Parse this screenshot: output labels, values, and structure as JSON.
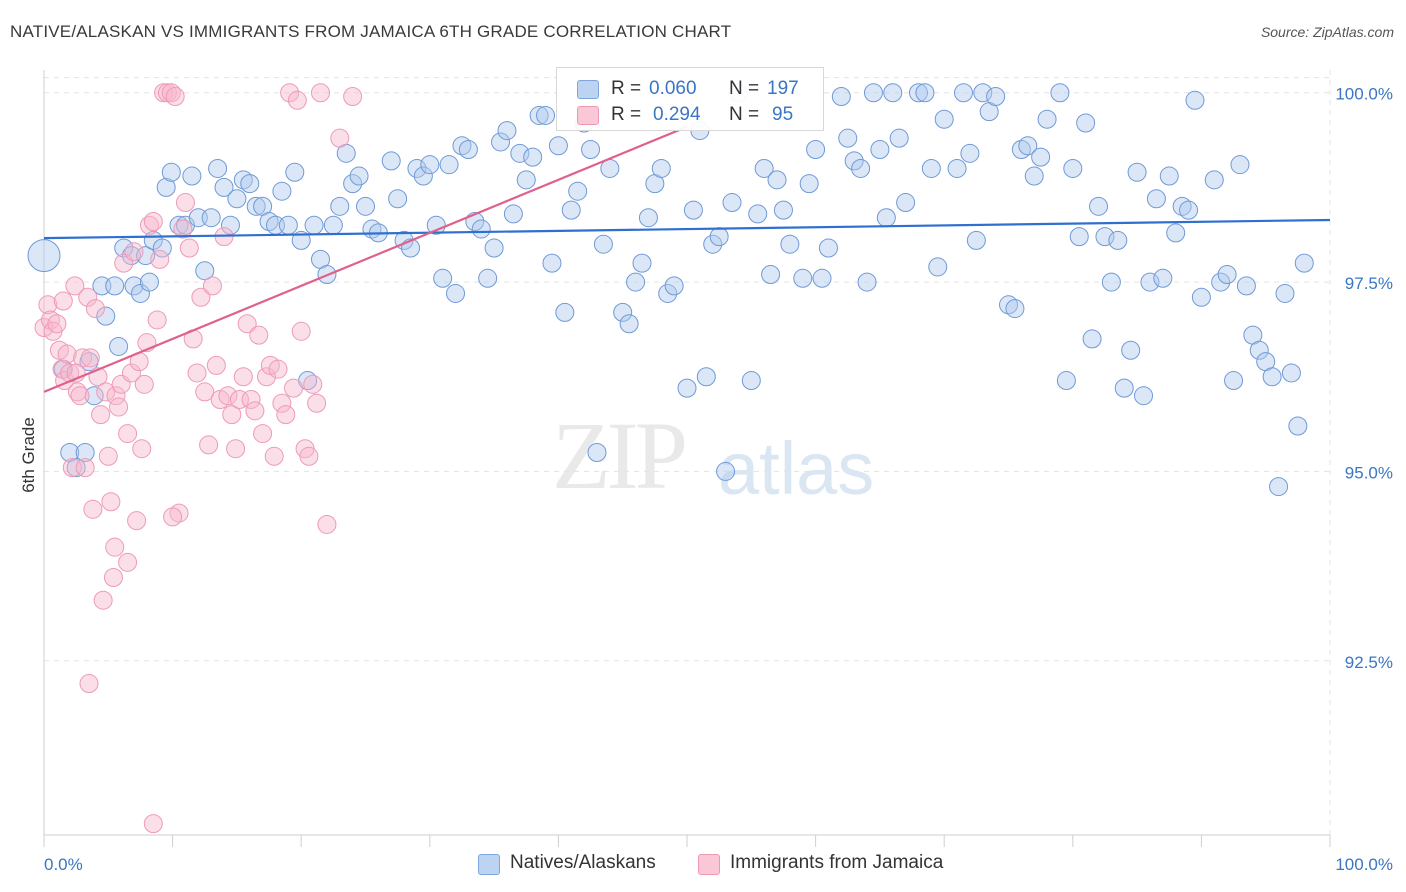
{
  "title": "NATIVE/ALASKAN VS IMMIGRANTS FROM JAMAICA 6TH GRADE CORRELATION CHART",
  "source": "Source: ZipAtlas.com",
  "watermark": {
    "zip": "ZIP",
    "atlas": "atlas"
  },
  "legend": {
    "r_label": "R =",
    "n_label": "N =",
    "series1": {
      "r": "0.060",
      "n": "197"
    },
    "series2": {
      "r": "0.294",
      "n": "95"
    }
  },
  "bottom_legend": {
    "series1": "Natives/Alaskans",
    "series2": "Immigrants from Jamaica"
  },
  "colors": {
    "blue": "#3a76c4",
    "pink": "#e86f98",
    "blue_fill": "#bcd3f2",
    "pink_fill": "#f9c7d6"
  },
  "chart_data": {
    "type": "scatter",
    "title": "NATIVE/ALASKAN VS IMMIGRANTS FROM JAMAICA 6TH GRADE CORRELATION CHART",
    "xlabel": "",
    "ylabel": "6th Grade",
    "xlim": [
      0,
      100
    ],
    "ylim": [
      90.2,
      100.3
    ],
    "x_tick_labels": [
      "0.0%",
      "100.0%"
    ],
    "y_ticks": [
      92.5,
      95.0,
      97.5,
      100.0
    ],
    "y_tick_labels": [
      "92.5%",
      "95.0%",
      "97.5%",
      "100.0%"
    ],
    "grid": true,
    "legend_position": "top-center",
    "series": [
      {
        "name": "Natives/Alaskans",
        "color": "#3a76c4",
        "trend": [
          [
            0,
            98.08
          ],
          [
            100,
            98.32
          ]
        ],
        "points": [
          [
            0,
            97.85
          ],
          [
            1.5,
            96.35
          ],
          [
            2,
            95.25
          ],
          [
            2.5,
            95.05
          ],
          [
            3.2,
            95.25
          ],
          [
            3.5,
            96.45
          ],
          [
            3.9,
            96.0
          ],
          [
            4.5,
            97.45
          ],
          [
            4.8,
            97.05
          ],
          [
            5.5,
            97.45
          ],
          [
            5.8,
            96.65
          ],
          [
            6.2,
            97.95
          ],
          [
            6.8,
            97.85
          ],
          [
            7,
            97.45
          ],
          [
            7.5,
            97.35
          ],
          [
            7.9,
            97.85
          ],
          [
            8.2,
            97.5
          ],
          [
            8.5,
            98.05
          ],
          [
            9.2,
            97.95
          ],
          [
            9.5,
            98.75
          ],
          [
            9.9,
            98.95
          ],
          [
            10.5,
            98.25
          ],
          [
            11,
            98.25
          ],
          [
            11.5,
            98.9
          ],
          [
            12,
            98.35
          ],
          [
            12.5,
            97.65
          ],
          [
            13,
            98.35
          ],
          [
            13.5,
            99.0
          ],
          [
            14,
            98.75
          ],
          [
            14.5,
            98.25
          ],
          [
            15,
            98.6
          ],
          [
            15.5,
            98.85
          ],
          [
            16,
            98.8
          ],
          [
            16.5,
            98.5
          ],
          [
            17,
            98.5
          ],
          [
            17.5,
            98.3
          ],
          [
            18,
            98.25
          ],
          [
            18.5,
            98.7
          ],
          [
            19,
            98.25
          ],
          [
            19.5,
            98.95
          ],
          [
            20,
            98.05
          ],
          [
            20.5,
            96.2
          ],
          [
            21,
            98.25
          ],
          [
            21.5,
            97.8
          ],
          [
            22,
            97.6
          ],
          [
            22.5,
            98.25
          ],
          [
            23,
            98.5
          ],
          [
            23.5,
            99.2
          ],
          [
            24,
            98.8
          ],
          [
            24.5,
            98.9
          ],
          [
            25,
            98.5
          ],
          [
            25.5,
            98.2
          ],
          [
            26,
            98.15
          ],
          [
            27,
            99.1
          ],
          [
            27.5,
            98.6
          ],
          [
            28,
            98.05
          ],
          [
            28.5,
            97.95
          ],
          [
            29,
            99.0
          ],
          [
            29.5,
            98.9
          ],
          [
            30,
            99.05
          ],
          [
            30.5,
            98.25
          ],
          [
            31,
            97.55
          ],
          [
            31.5,
            99.05
          ],
          [
            32,
            97.35
          ],
          [
            32.5,
            99.3
          ],
          [
            33,
            99.25
          ],
          [
            33.5,
            98.3
          ],
          [
            34,
            98.2
          ],
          [
            34.5,
            97.55
          ],
          [
            35,
            97.95
          ],
          [
            35.5,
            99.35
          ],
          [
            36,
            99.5
          ],
          [
            36.5,
            98.4
          ],
          [
            37,
            99.2
          ],
          [
            37.5,
            98.85
          ],
          [
            38,
            99.15
          ],
          [
            38.5,
            99.7
          ],
          [
            39,
            99.7
          ],
          [
            39.5,
            97.75
          ],
          [
            40,
            99.3
          ],
          [
            40.5,
            97.1
          ],
          [
            41,
            98.45
          ],
          [
            41.5,
            98.7
          ],
          [
            42,
            99.6
          ],
          [
            42.5,
            99.25
          ],
          [
            43,
            95.25
          ],
          [
            43.5,
            98.0
          ],
          [
            44,
            99.0
          ],
          [
            45,
            97.1
          ],
          [
            45.5,
            96.95
          ],
          [
            46,
            97.5
          ],
          [
            46.5,
            97.75
          ],
          [
            47,
            98.35
          ],
          [
            47.5,
            98.8
          ],
          [
            48,
            99.0
          ],
          [
            48.5,
            97.35
          ],
          [
            49,
            97.45
          ],
          [
            50,
            96.1
          ],
          [
            50.5,
            98.45
          ],
          [
            51,
            99.5
          ],
          [
            51.5,
            96.25
          ],
          [
            52,
            98.0
          ],
          [
            52.5,
            98.1
          ],
          [
            53,
            95.0
          ],
          [
            53.5,
            98.55
          ],
          [
            54,
            100.0
          ],
          [
            55,
            96.2
          ],
          [
            55.5,
            98.4
          ],
          [
            56,
            99.0
          ],
          [
            56.5,
            97.6
          ],
          [
            57,
            98.85
          ],
          [
            57.5,
            98.45
          ],
          [
            58,
            98.0
          ],
          [
            59,
            97.55
          ],
          [
            59.5,
            98.8
          ],
          [
            60,
            99.25
          ],
          [
            60.5,
            97.55
          ],
          [
            61,
            97.95
          ],
          [
            62,
            99.95
          ],
          [
            62.5,
            99.4
          ],
          [
            63,
            99.1
          ],
          [
            63.5,
            99.0
          ],
          [
            64,
            97.5
          ],
          [
            64.5,
            100.0
          ],
          [
            65,
            99.25
          ],
          [
            65.5,
            98.35
          ],
          [
            66,
            100.0
          ],
          [
            66.5,
            99.4
          ],
          [
            67,
            98.55
          ],
          [
            68,
            100.0
          ],
          [
            68.5,
            100.0
          ],
          [
            69,
            99.0
          ],
          [
            69.5,
            97.7
          ],
          [
            70,
            99.65
          ],
          [
            71,
            99.0
          ],
          [
            71.5,
            100.0
          ],
          [
            72,
            99.2
          ],
          [
            72.5,
            98.05
          ],
          [
            73,
            100.0
          ],
          [
            73.5,
            99.75
          ],
          [
            74,
            99.95
          ],
          [
            75,
            97.2
          ],
          [
            75.5,
            97.15
          ],
          [
            76,
            99.25
          ],
          [
            76.5,
            99.3
          ],
          [
            77,
            98.9
          ],
          [
            77.5,
            99.15
          ],
          [
            78,
            99.65
          ],
          [
            79,
            100.0
          ],
          [
            79.5,
            96.2
          ],
          [
            80,
            99.0
          ],
          [
            80.5,
            98.1
          ],
          [
            81,
            99.6
          ],
          [
            81.5,
            96.75
          ],
          [
            82,
            98.5
          ],
          [
            82.5,
            98.1
          ],
          [
            83,
            97.5
          ],
          [
            83.5,
            98.05
          ],
          [
            84,
            96.1
          ],
          [
            84.5,
            96.6
          ],
          [
            85,
            98.95
          ],
          [
            85.5,
            96.0
          ],
          [
            86,
            97.5
          ],
          [
            86.5,
            98.6
          ],
          [
            87,
            97.55
          ],
          [
            87.5,
            98.9
          ],
          [
            88,
            98.15
          ],
          [
            88.5,
            98.5
          ],
          [
            89,
            98.45
          ],
          [
            89.5,
            99.9
          ],
          [
            90,
            97.3
          ],
          [
            91,
            98.85
          ],
          [
            91.5,
            97.5
          ],
          [
            92,
            97.6
          ],
          [
            92.5,
            96.2
          ],
          [
            93,
            99.05
          ],
          [
            93.5,
            97.45
          ],
          [
            94,
            96.8
          ],
          [
            94.5,
            96.6
          ],
          [
            95,
            96.45
          ],
          [
            95.5,
            96.25
          ],
          [
            96,
            94.8
          ],
          [
            96.5,
            97.35
          ],
          [
            97,
            96.3
          ],
          [
            97.5,
            95.6
          ],
          [
            98,
            97.75
          ]
        ]
      },
      {
        "name": "Immigrants from Jamaica",
        "color": "#e86f98",
        "trend": [
          [
            0,
            96.05
          ],
          [
            50,
            99.55
          ]
        ],
        "points": [
          [
            0,
            96.9
          ],
          [
            0.3,
            97.2
          ],
          [
            0.5,
            97.0
          ],
          [
            0.7,
            96.85
          ],
          [
            1,
            96.95
          ],
          [
            1.2,
            96.6
          ],
          [
            1.4,
            96.35
          ],
          [
            1.6,
            96.2
          ],
          [
            1.8,
            96.55
          ],
          [
            2,
            96.3
          ],
          [
            2.2,
            95.05
          ],
          [
            2.4,
            97.45
          ],
          [
            2.6,
            96.05
          ],
          [
            2.8,
            96.0
          ],
          [
            3,
            96.5
          ],
          [
            3.2,
            95.05
          ],
          [
            3.4,
            97.3
          ],
          [
            3.6,
            96.5
          ],
          [
            3.8,
            94.5
          ],
          [
            4,
            97.15
          ],
          [
            4.2,
            96.25
          ],
          [
            4.4,
            95.75
          ],
          [
            4.6,
            93.3
          ],
          [
            4.8,
            96.05
          ],
          [
            5,
            95.2
          ],
          [
            5.2,
            94.6
          ],
          [
            5.4,
            93.6
          ],
          [
            5.6,
            96.0
          ],
          [
            5.8,
            95.85
          ],
          [
            6,
            96.15
          ],
          [
            6.2,
            97.75
          ],
          [
            6.5,
            95.5
          ],
          [
            6.8,
            96.3
          ],
          [
            7,
            97.9
          ],
          [
            7.2,
            94.35
          ],
          [
            7.4,
            96.45
          ],
          [
            7.6,
            95.3
          ],
          [
            7.8,
            96.15
          ],
          [
            8,
            96.7
          ],
          [
            8.2,
            98.25
          ],
          [
            8.5,
            98.3
          ],
          [
            8.8,
            97.0
          ],
          [
            9,
            97.8
          ],
          [
            9.3,
            100.0
          ],
          [
            9.6,
            100.0
          ],
          [
            9.9,
            100.0
          ],
          [
            10.2,
            99.95
          ],
          [
            10.5,
            94.45
          ],
          [
            10.8,
            98.2
          ],
          [
            11,
            98.55
          ],
          [
            11.3,
            97.95
          ],
          [
            11.6,
            96.75
          ],
          [
            11.9,
            96.3
          ],
          [
            12.2,
            97.3
          ],
          [
            12.5,
            96.05
          ],
          [
            12.8,
            95.35
          ],
          [
            13.1,
            97.45
          ],
          [
            13.4,
            96.4
          ],
          [
            13.7,
            95.95
          ],
          [
            14,
            98.1
          ],
          [
            14.3,
            96.0
          ],
          [
            14.6,
            95.75
          ],
          [
            14.9,
            95.3
          ],
          [
            15.2,
            95.95
          ],
          [
            15.5,
            96.25
          ],
          [
            15.8,
            96.95
          ],
          [
            16.1,
            95.95
          ],
          [
            16.4,
            95.8
          ],
          [
            16.7,
            96.8
          ],
          [
            17,
            95.5
          ],
          [
            17.3,
            96.25
          ],
          [
            17.6,
            96.4
          ],
          [
            17.9,
            95.2
          ],
          [
            18.2,
            96.35
          ],
          [
            18.5,
            95.9
          ],
          [
            18.8,
            95.75
          ],
          [
            19.1,
            100.0
          ],
          [
            19.4,
            96.1
          ],
          [
            19.7,
            99.9
          ],
          [
            20,
            96.85
          ],
          [
            20.3,
            95.3
          ],
          [
            20.6,
            95.2
          ],
          [
            20.9,
            96.15
          ],
          [
            21.2,
            95.9
          ],
          [
            21.5,
            100.0
          ],
          [
            22,
            94.3
          ],
          [
            23,
            99.4
          ],
          [
            24,
            99.95
          ],
          [
            1.5,
            97.25
          ],
          [
            2.5,
            96.3
          ],
          [
            3.5,
            92.2
          ],
          [
            5.5,
            94.0
          ],
          [
            6.5,
            93.8
          ],
          [
            8.5,
            90.35
          ],
          [
            10,
            94.4
          ]
        ]
      }
    ]
  }
}
